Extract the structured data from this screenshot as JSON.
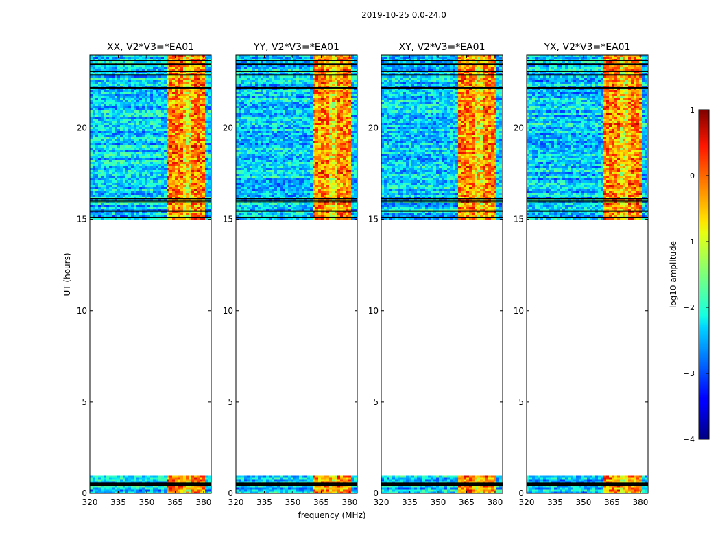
{
  "figure": {
    "suptitle": "2019-10-25 0.0-24.0",
    "xlabel": "frequency (MHz)",
    "ylabel": "UT (hours)"
  },
  "colorbar": {
    "label": "log10 amplitude",
    "range": [
      -4,
      1
    ],
    "ticks": [
      1,
      0,
      -1,
      -2,
      -3,
      -4
    ],
    "tick_labels": [
      "1",
      "0",
      "−1",
      "−2",
      "−3",
      "−4"
    ],
    "colormap": "jet"
  },
  "chart_data": [
    {
      "type": "heatmap",
      "title": "XX, V2*V3=*EA01",
      "xlim": [
        320,
        384
      ],
      "ylim": [
        0,
        24
      ],
      "xticks": [
        320,
        335,
        350,
        365,
        380
      ],
      "xtick_labels": [
        "320",
        "335",
        "350",
        "365",
        "380"
      ],
      "yticks": [
        0,
        5,
        10,
        15,
        20
      ],
      "ytick_labels": [
        "0",
        "5",
        "10",
        "15",
        "20"
      ],
      "data_hours": [
        [
          0.0,
          1.0
        ],
        [
          15.0,
          24.0
        ]
      ],
      "bright_band_mhz": [
        361,
        381
      ],
      "flagged_rows_hours": [
        0.45,
        0.55,
        15.1,
        15.45,
        15.95,
        16.05,
        16.15,
        22.2,
        22.9,
        23.1,
        23.5,
        23.7
      ]
    },
    {
      "type": "heatmap",
      "title": "YY, V2*V3=*EA01",
      "xlim": [
        320,
        384
      ],
      "ylim": [
        0,
        24
      ],
      "xticks": [
        320,
        335,
        350,
        365,
        380
      ],
      "xtick_labels": [
        "320",
        "335",
        "350",
        "365",
        "380"
      ],
      "yticks": [
        0,
        5,
        10,
        15,
        20
      ],
      "ytick_labels": [
        "0",
        "5",
        "10",
        "15",
        "20"
      ],
      "data_hours": [
        [
          0.0,
          1.0
        ],
        [
          15.0,
          24.0
        ]
      ],
      "bright_band_mhz": [
        361,
        381
      ],
      "flagged_rows_hours": [
        0.45,
        0.55,
        15.1,
        15.45,
        15.95,
        16.05,
        16.15,
        22.2,
        22.9,
        23.1,
        23.5,
        23.7
      ]
    },
    {
      "type": "heatmap",
      "title": "XY, V2*V3=*EA01",
      "xlim": [
        320,
        384
      ],
      "ylim": [
        0,
        24
      ],
      "xticks": [
        320,
        335,
        350,
        365,
        380
      ],
      "xtick_labels": [
        "320",
        "335",
        "350",
        "365",
        "380"
      ],
      "yticks": [
        0,
        5,
        10,
        15,
        20
      ],
      "ytick_labels": [
        "0",
        "5",
        "10",
        "15",
        "20"
      ],
      "data_hours": [
        [
          0.0,
          1.0
        ],
        [
          15.0,
          24.0
        ]
      ],
      "bright_band_mhz": [
        361,
        381
      ],
      "flagged_rows_hours": [
        0.45,
        0.55,
        15.1,
        15.45,
        15.95,
        16.05,
        16.15,
        22.2,
        22.9,
        23.1,
        23.5,
        23.7
      ]
    },
    {
      "type": "heatmap",
      "title": "YX, V2*V3=*EA01",
      "xlim": [
        320,
        384
      ],
      "ylim": [
        0,
        24
      ],
      "xticks": [
        320,
        335,
        350,
        365,
        380
      ],
      "xtick_labels": [
        "320",
        "335",
        "350",
        "365",
        "380"
      ],
      "yticks": [
        0,
        5,
        10,
        15,
        20
      ],
      "ytick_labels": [
        "0",
        "5",
        "10",
        "15",
        "20"
      ],
      "data_hours": [
        [
          0.0,
          1.0
        ],
        [
          15.0,
          24.0
        ]
      ],
      "bright_band_mhz": [
        361,
        381
      ],
      "flagged_rows_hours": [
        0.45,
        0.55,
        15.1,
        15.45,
        15.95,
        16.05,
        16.15,
        22.2,
        22.9,
        23.1,
        23.5,
        23.7
      ]
    }
  ]
}
